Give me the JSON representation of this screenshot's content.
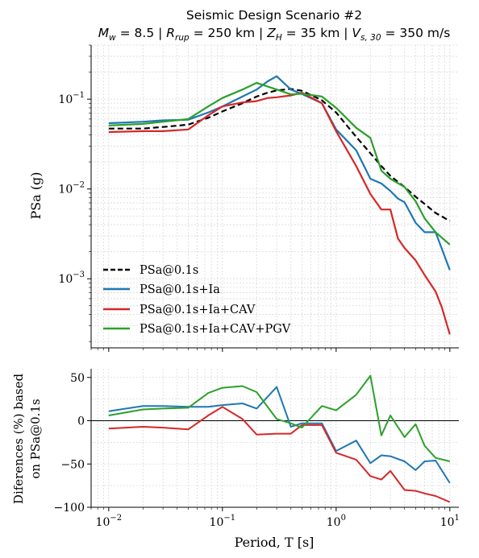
{
  "title": {
    "line1": "Seismic Design Scenario #2",
    "line2": "M_w = 8.5 | R_rup = 250 km | Z_H = 35 km | V_s,30 = 350 m/s"
  },
  "colors": {
    "black": "#000000",
    "blue": "#1f77b4",
    "red": "#d62728",
    "green": "#2ca02c"
  },
  "chart_data": [
    {
      "type": "line",
      "ylabel": "PSa (g)",
      "xscale": "log",
      "yscale": "log",
      "xlim": [
        0.007,
        12
      ],
      "ylim": [
        0.00017,
        0.4
      ],
      "xticks": [
        {
          "value": 0.01,
          "label": "10^-2"
        },
        {
          "value": 0.1,
          "label": "10^-1"
        },
        {
          "value": 1,
          "label": "10^0"
        },
        {
          "value": 10,
          "label": "10^1"
        }
      ],
      "yticks": [
        {
          "value": 0.001,
          "label": "10^-3"
        },
        {
          "value": 0.01,
          "label": "10^-2"
        },
        {
          "value": 0.1,
          "label": "10^-1"
        }
      ],
      "grid": true,
      "legend": "lower-left",
      "series": [
        {
          "name": "PSa@0.1s",
          "color": "black",
          "dash": "dashed",
          "x": [
            0.01,
            0.02,
            0.03,
            0.05,
            0.075,
            0.1,
            0.15,
            0.2,
            0.25,
            0.3,
            0.4,
            0.5,
            0.75,
            1.0,
            1.5,
            2.0,
            2.5,
            3.0,
            4.0,
            5.0,
            6.0,
            7.5,
            10.0
          ],
          "values": [
            0.047,
            0.047,
            0.049,
            0.052,
            0.062,
            0.073,
            0.09,
            0.107,
            0.118,
            0.125,
            0.13,
            0.124,
            0.097,
            0.071,
            0.038,
            0.025,
            0.018,
            0.014,
            0.0105,
            0.0082,
            0.0068,
            0.0054,
            0.0044
          ]
        },
        {
          "name": "PSa@0.1s+Ia",
          "color": "blue",
          "dash": "solid",
          "x": [
            0.01,
            0.02,
            0.03,
            0.05,
            0.075,
            0.1,
            0.15,
            0.2,
            0.25,
            0.3,
            0.4,
            0.5,
            0.75,
            1.0,
            1.5,
            2.0,
            2.5,
            3.0,
            3.5,
            4.0,
            5.0,
            6.0,
            7.5,
            10.0
          ],
          "values": [
            0.054,
            0.056,
            0.058,
            0.059,
            0.071,
            0.083,
            0.107,
            0.128,
            0.158,
            0.18,
            0.128,
            0.114,
            0.09,
            0.046,
            0.027,
            0.013,
            0.0115,
            0.0095,
            0.0078,
            0.0071,
            0.0042,
            0.0033,
            0.0033,
            0.00125
          ]
        },
        {
          "name": "PSa@0.1s+Ia+CAV",
          "color": "red",
          "dash": "solid",
          "x": [
            0.01,
            0.02,
            0.03,
            0.05,
            0.075,
            0.1,
            0.15,
            0.2,
            0.25,
            0.3,
            0.4,
            0.5,
            0.75,
            1.0,
            1.5,
            2.0,
            2.5,
            3.0,
            3.5,
            4.0,
            5.0,
            6.0,
            7.5,
            8.5,
            10.0
          ],
          "values": [
            0.043,
            0.044,
            0.044,
            0.046,
            0.066,
            0.083,
            0.092,
            0.095,
            0.103,
            0.105,
            0.11,
            0.118,
            0.09,
            0.044,
            0.018,
            0.0088,
            0.0059,
            0.0059,
            0.0028,
            0.0022,
            0.0016,
            0.0011,
            0.00072,
            0.00048,
            0.00024
          ]
        },
        {
          "name": "PSa@0.1s+Ia+CAV+PGV",
          "color": "green",
          "dash": "solid",
          "x": [
            0.01,
            0.02,
            0.03,
            0.05,
            0.075,
            0.1,
            0.15,
            0.2,
            0.3,
            0.4,
            0.5,
            0.75,
            1.0,
            1.5,
            2.0,
            2.5,
            3.0,
            4.0,
            5.0,
            6.0,
            7.5,
            10.0
          ],
          "values": [
            0.051,
            0.053,
            0.056,
            0.06,
            0.083,
            0.103,
            0.128,
            0.152,
            0.128,
            0.113,
            0.115,
            0.107,
            0.08,
            0.048,
            0.037,
            0.016,
            0.013,
            0.0105,
            0.0073,
            0.0047,
            0.0033,
            0.0024
          ]
        }
      ]
    },
    {
      "type": "line",
      "xlabel": "Period, T [s]",
      "ylabel_line1": "Diferences (%) based",
      "ylabel_line2": "on PSa@0.1s",
      "xscale": "log",
      "xlim": [
        0.007,
        12
      ],
      "ylim": [
        -100,
        60
      ],
      "xticks": [
        {
          "value": 0.01,
          "label": "10^-2"
        },
        {
          "value": 0.1,
          "label": "10^-1"
        },
        {
          "value": 1,
          "label": "10^0"
        },
        {
          "value": 10,
          "label": "10^1"
        }
      ],
      "yticks": [
        {
          "value": 50,
          "label": "50"
        },
        {
          "value": 0,
          "label": "0"
        },
        {
          "value": -50,
          "label": "−50"
        },
        {
          "value": -100,
          "label": "−100"
        }
      ],
      "zero_line": true,
      "grid": true,
      "series": [
        {
          "color": "blue",
          "x": [
            0.01,
            0.02,
            0.03,
            0.05,
            0.075,
            0.1,
            0.15,
            0.2,
            0.3,
            0.4,
            0.5,
            0.75,
            1.0,
            1.5,
            2.0,
            2.5,
            3.0,
            4.0,
            5.0,
            6.0,
            7.5,
            10.0
          ],
          "values": [
            11,
            17,
            17,
            16,
            16,
            18,
            20,
            14,
            39,
            -7,
            -3,
            -3,
            -35,
            -23,
            -49,
            -40,
            -41,
            -47,
            -57,
            -47,
            -46,
            -72
          ]
        },
        {
          "color": "red",
          "x": [
            0.01,
            0.02,
            0.03,
            0.05,
            0.075,
            0.1,
            0.15,
            0.2,
            0.3,
            0.4,
            0.5,
            0.75,
            1.0,
            1.5,
            2.0,
            2.5,
            3.0,
            4.0,
            5.0,
            6.0,
            7.5,
            10.0
          ],
          "values": [
            -9,
            -7,
            -8,
            -10,
            6,
            16,
            2,
            -16,
            -15,
            -15,
            -5,
            -5,
            -37,
            -45,
            -64,
            -68,
            -58,
            -80,
            -81,
            -84,
            -87,
            -94
          ]
        },
        {
          "color": "green",
          "x": [
            0.01,
            0.02,
            0.03,
            0.05,
            0.075,
            0.1,
            0.15,
            0.2,
            0.3,
            0.4,
            0.5,
            0.75,
            1.0,
            1.5,
            2.0,
            2.5,
            3.0,
            4.0,
            5.0,
            6.0,
            7.5,
            10.0
          ],
          "values": [
            6,
            13,
            14,
            15,
            32,
            38,
            40,
            33,
            2,
            -3,
            -8,
            17,
            12,
            30,
            52,
            -17,
            6,
            -19,
            -4,
            -29,
            -43,
            -47
          ]
        }
      ]
    }
  ]
}
